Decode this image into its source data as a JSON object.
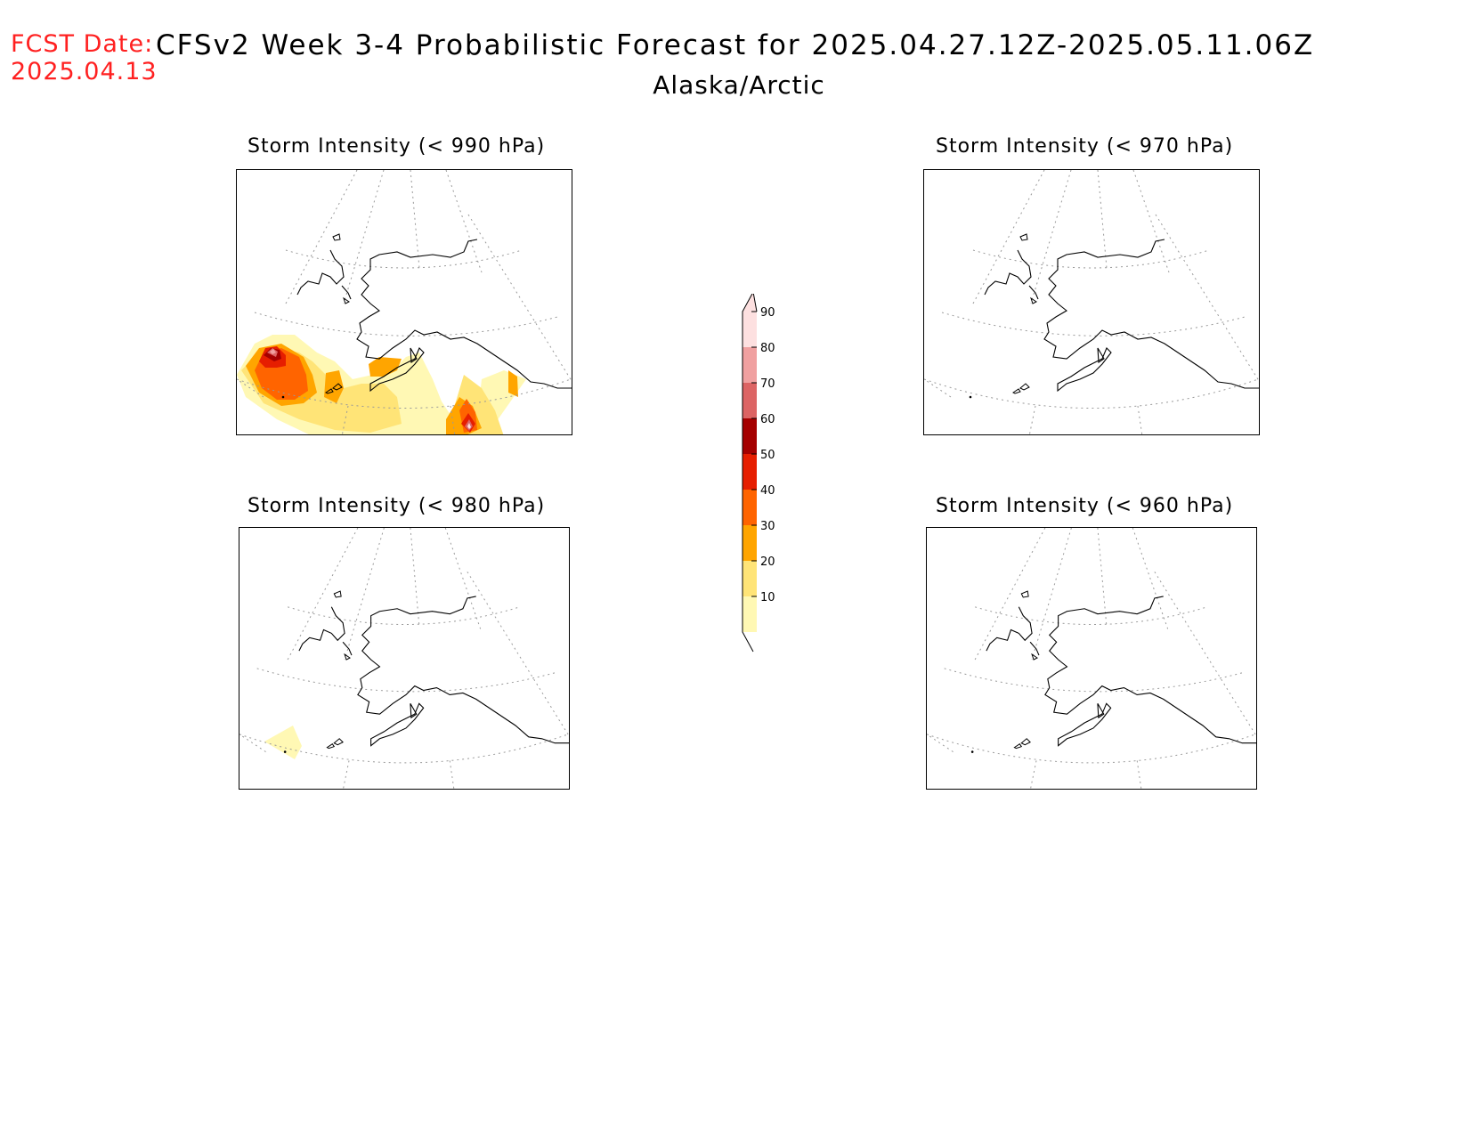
{
  "header": {
    "fcst_label": "FCST Date:",
    "fcst_date": "2025.04.13",
    "title": "CFSv2 Week 3-4 Probabilistic Forecast for 2025.04.27.12Z-2025.05.11.06Z",
    "region": "Alaska/Arctic"
  },
  "panels": [
    {
      "title": "Storm Intensity (< 990 hPa)",
      "threshold_hpa": 990,
      "has_shading": true
    },
    {
      "title": "Storm Intensity (< 970 hPa)",
      "threshold_hpa": 970,
      "has_shading": false
    },
    {
      "title": "Storm Intensity (< 980 hPa)",
      "threshold_hpa": 980,
      "has_shading": true
    },
    {
      "title": "Storm Intensity (< 960 hPa)",
      "threshold_hpa": 960,
      "has_shading": false
    }
  ],
  "colorbar": {
    "levels": [
      "10",
      "20",
      "30",
      "40",
      "50",
      "60",
      "70",
      "80",
      "90"
    ],
    "colors": [
      "#fff8b4",
      "#ffe477",
      "#ffa500",
      "#ff6400",
      "#e61e00",
      "#a50000",
      "#dc6464",
      "#f0a0a0",
      "#fde0e0"
    ]
  }
}
